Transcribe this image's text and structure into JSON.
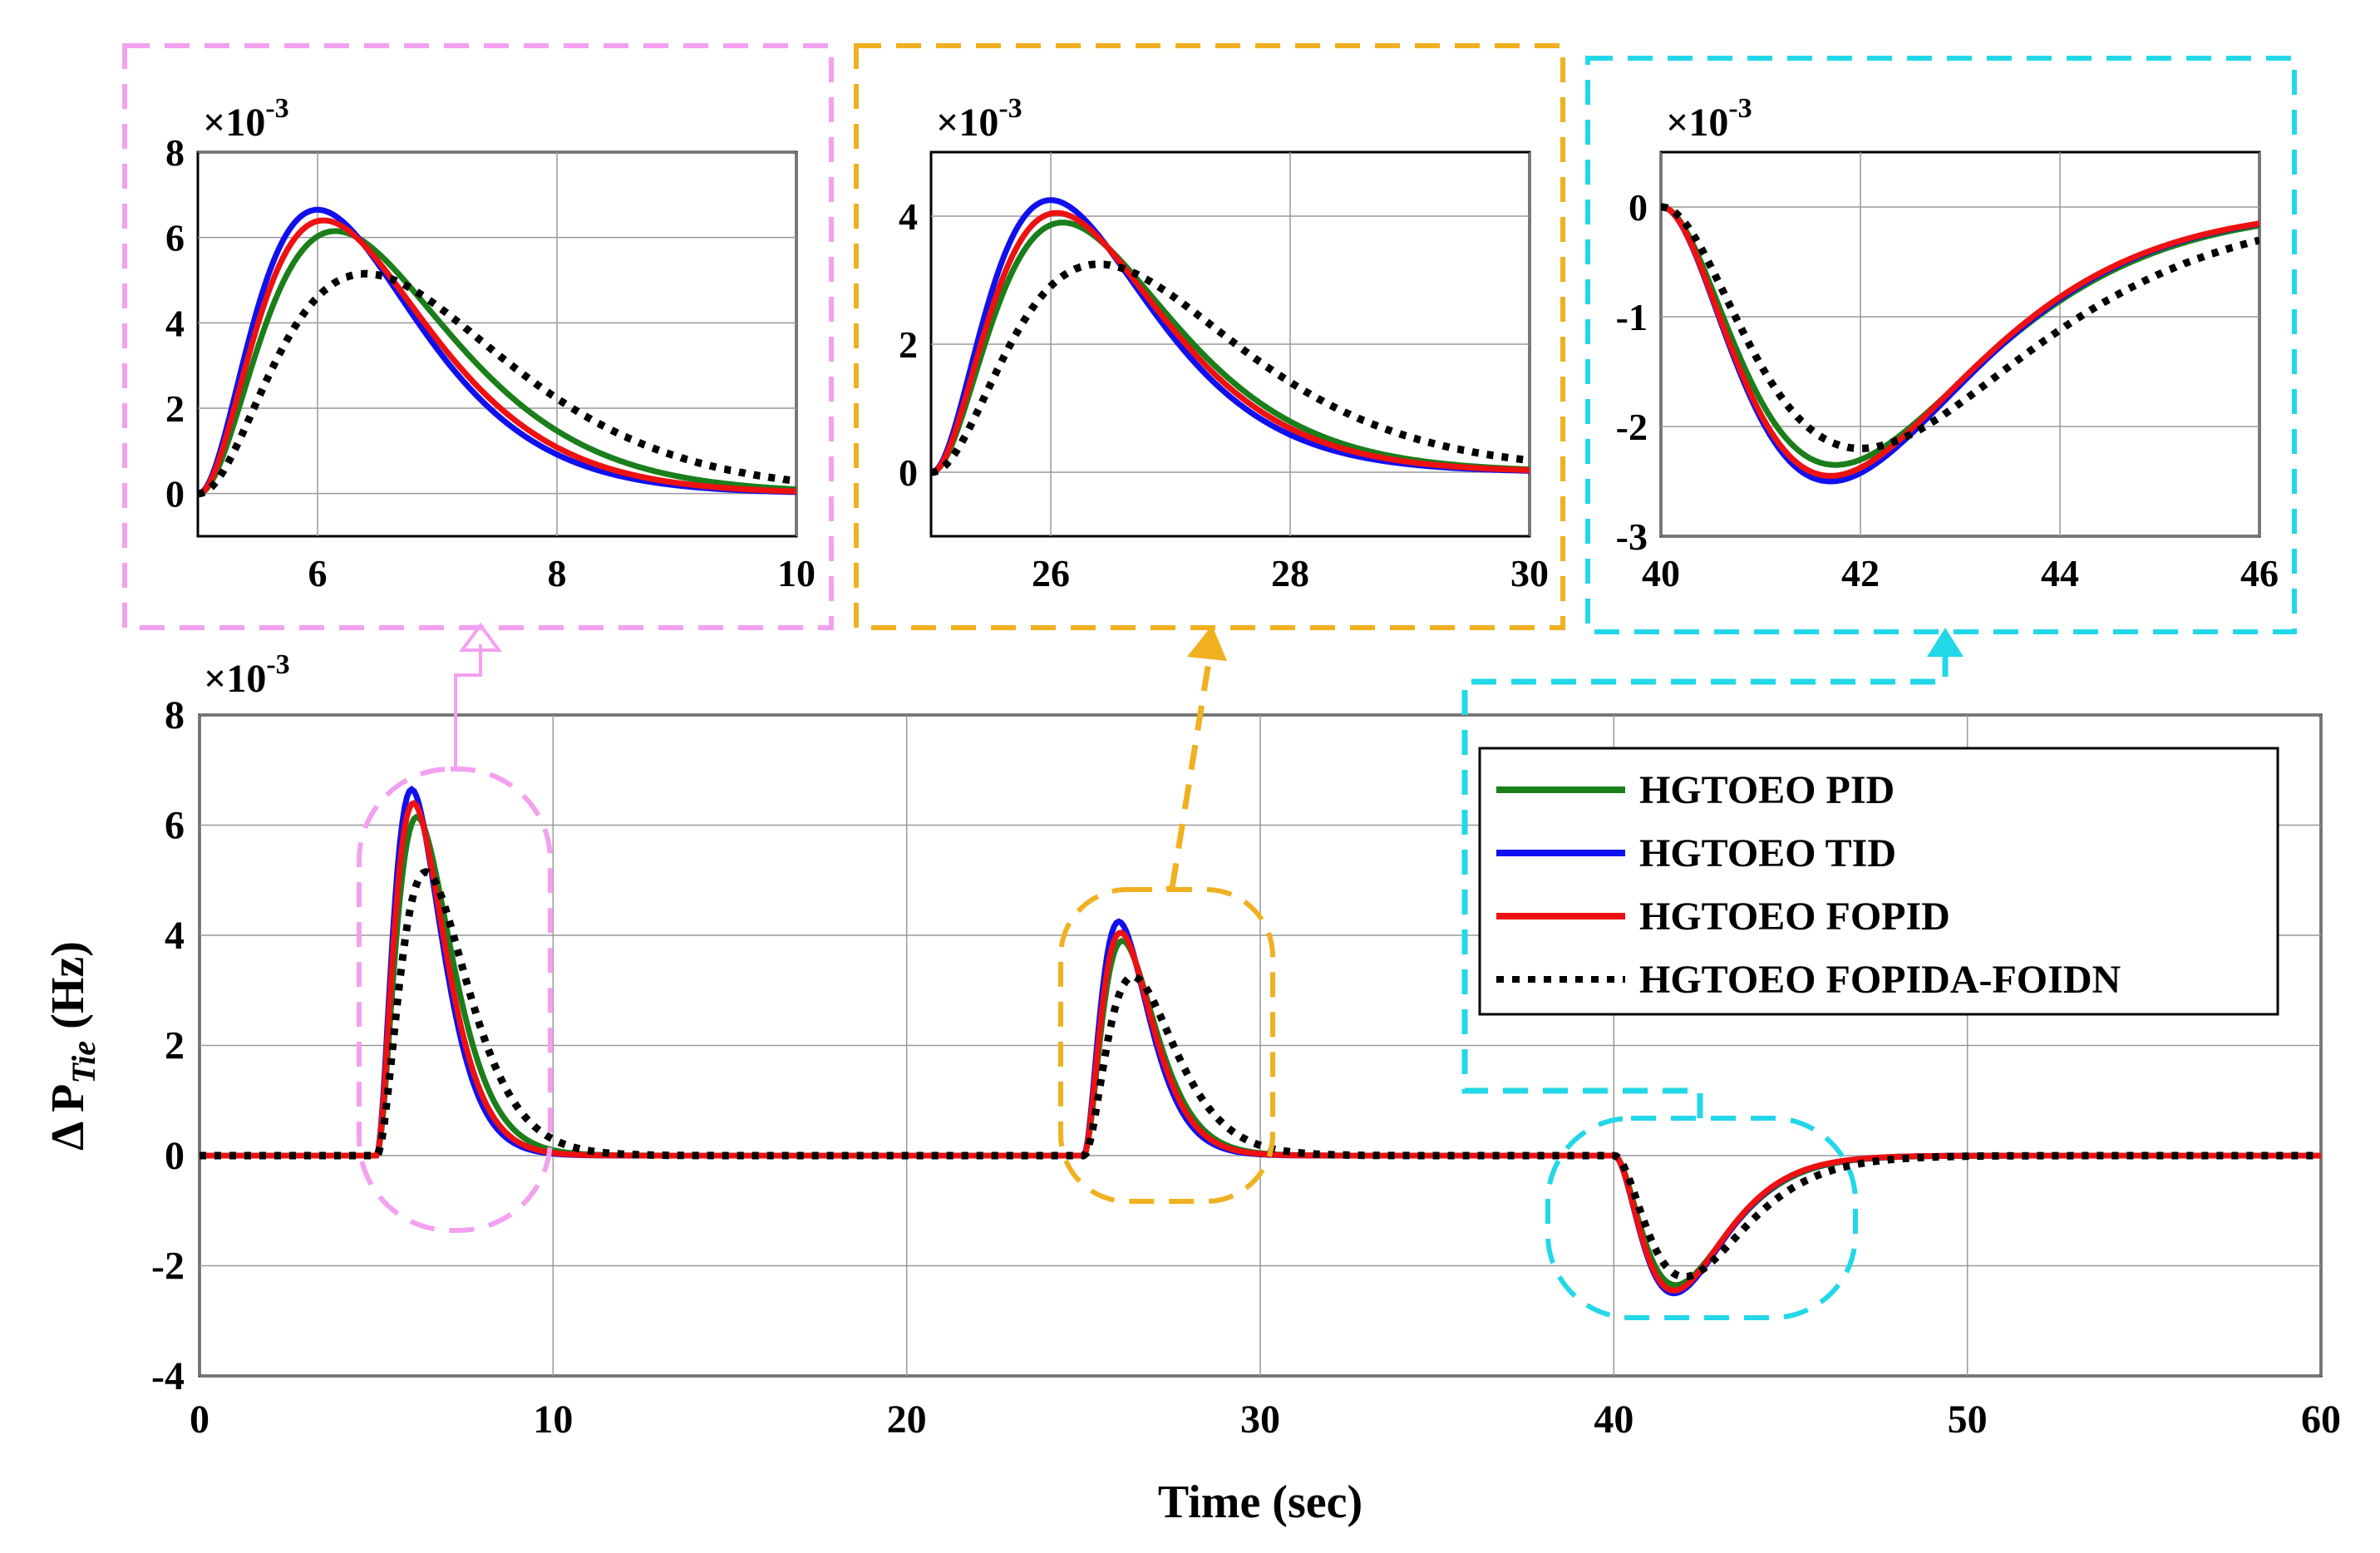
{
  "chart_data": {
    "type": "line",
    "xlabel": "Time (sec)",
    "ylabel_prefix": "Δ P",
    "ylabel_sub": "Tie",
    "ylabel_suffix": " (Hz)",
    "y_scale_text": "×10",
    "y_scale_exp": "-3",
    "xlim": [
      0,
      60
    ],
    "ylim": [
      -4,
      8
    ],
    "xticks": [
      "0",
      "10",
      "20",
      "30",
      "40",
      "50",
      "60"
    ],
    "yticks": [
      "-4",
      "-2",
      "0",
      "2",
      "4",
      "6",
      "8"
    ],
    "grid": true,
    "legend_position": "top-right",
    "series": [
      {
        "name": "HGTOEO PID",
        "color": "#1a7f1a",
        "style": "solid",
        "disturbances": [
          {
            "t0": 5,
            "amp": 6.15,
            "dt": 1.15
          },
          {
            "t0": 25,
            "amp": 3.9,
            "dt": 1.1
          },
          {
            "t0": 40,
            "amp": -2.35,
            "dt": 1.75
          }
        ]
      },
      {
        "name": "HGTOEO TID",
        "color": "#1010ee",
        "style": "solid",
        "disturbances": [
          {
            "t0": 5,
            "amp": 6.65,
            "dt": 1.0
          },
          {
            "t0": 25,
            "amp": 4.25,
            "dt": 1.0
          },
          {
            "t0": 40,
            "amp": -2.5,
            "dt": 1.7
          }
        ]
      },
      {
        "name": "HGTOEO FOPID",
        "color": "#ee1111",
        "style": "solid",
        "disturbances": [
          {
            "t0": 5,
            "amp": 6.4,
            "dt": 1.05
          },
          {
            "t0": 25,
            "amp": 4.05,
            "dt": 1.05
          },
          {
            "t0": 40,
            "amp": -2.45,
            "dt": 1.7
          }
        ]
      },
      {
        "name": "HGTOEO FOPIDA-FOIDN",
        "color": "#000000",
        "style": "dotted",
        "disturbances": [
          {
            "t0": 5,
            "amp": 5.15,
            "dt": 1.4
          },
          {
            "t0": 25,
            "amp": 3.25,
            "dt": 1.4
          },
          {
            "t0": 40,
            "amp": -2.2,
            "dt": 2.0
          }
        ]
      }
    ],
    "insets": [
      {
        "xlim": [
          5,
          10
        ],
        "ylim": [
          -1,
          8
        ],
        "xticks": [
          "6",
          "8",
          "10"
        ],
        "yticks": [
          "0",
          "2",
          "4",
          "6",
          "8"
        ],
        "scale_text": "×10",
        "scale_exp": "-3",
        "color": "#f4a0f0"
      },
      {
        "xlim": [
          25,
          30
        ],
        "ylim": [
          -1,
          5
        ],
        "xticks": [
          "26",
          "28",
          "30"
        ],
        "yticks": [
          "0",
          "2",
          "4"
        ],
        "scale_text": "×10",
        "scale_exp": "-3",
        "color": "#f0b020"
      },
      {
        "xlim": [
          40,
          46
        ],
        "ylim": [
          -3,
          0.5
        ],
        "xticks": [
          "40",
          "42",
          "44",
          "46"
        ],
        "yticks": [
          "-3",
          "-2",
          "-1",
          "0"
        ],
        "scale_text": "×10",
        "scale_exp": "-3",
        "color": "#22d8e8"
      }
    ]
  }
}
